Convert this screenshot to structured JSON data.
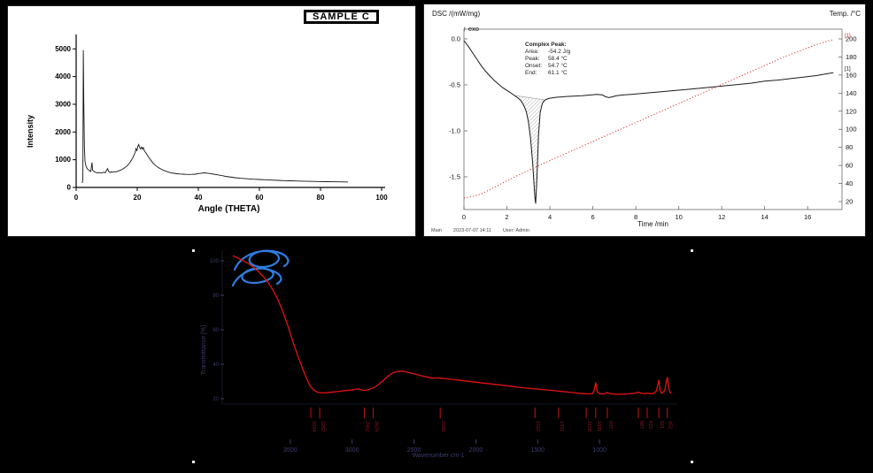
{
  "page": {
    "background": "#000000"
  },
  "xrd": {
    "sample_label": "SAMPLE C",
    "xlabel": "Angle (THETA)",
    "ylabel": "Intensity"
  },
  "dsc": {
    "left_axis_title": "DSC /(mW/mg)",
    "exo_label": "↑ exo",
    "right_axis_title": "Temp. /°C",
    "xlabel": "Time /min",
    "annotation": {
      "title": "Complex Peak:",
      "rows": [
        [
          "Area:",
          "-54.2 J/g"
        ],
        [
          "Peak:",
          "58.4 °C"
        ],
        [
          "Onset:",
          "54.7 °C"
        ],
        [
          "End:",
          "61.1 °C"
        ]
      ]
    },
    "footer": {
      "module": "Main",
      "datetime": "2023-07-07 14:11",
      "user": "User: Admin"
    }
  },
  "ftir": {
    "xlabel": "Wavenumber cm-1",
    "ylabel": "Transmittance [%]"
  },
  "chart_data": [
    {
      "type": "line",
      "name": "XRD pattern",
      "title": "SAMPLE C",
      "xlabel": "Angle (THETA)",
      "ylabel": "Intensity",
      "xlim": [
        0,
        100
      ],
      "ylim": [
        0,
        5200
      ],
      "xticks": [
        0,
        20,
        40,
        60,
        80,
        100
      ],
      "yticks": [
        0,
        1000,
        2000,
        3000,
        4000,
        5000
      ],
      "grid": false,
      "curve_color": "#141414",
      "points": [
        [
          2,
          160
        ],
        [
          2.2,
          300
        ],
        [
          2.35,
          4950
        ],
        [
          2.5,
          3200
        ],
        [
          2.7,
          1500
        ],
        [
          2.9,
          950
        ],
        [
          3.2,
          780
        ],
        [
          3.6,
          680
        ],
        [
          4,
          640
        ],
        [
          4.4,
          600
        ],
        [
          4.8,
          580
        ],
        [
          5,
          760
        ],
        [
          5.2,
          900
        ],
        [
          5.4,
          620
        ],
        [
          6,
          560
        ],
        [
          6.5,
          540
        ],
        [
          7,
          520
        ],
        [
          7.5,
          540
        ],
        [
          8,
          520
        ],
        [
          8.5,
          530
        ],
        [
          9,
          550
        ],
        [
          9.5,
          530
        ],
        [
          10,
          620
        ],
        [
          10.3,
          680
        ],
        [
          10.6,
          580
        ],
        [
          11,
          540
        ],
        [
          11.5,
          560
        ],
        [
          12,
          550
        ],
        [
          12.5,
          570
        ],
        [
          13,
          560
        ],
        [
          13.5,
          580
        ],
        [
          14,
          600
        ],
        [
          14.5,
          620
        ],
        [
          15,
          650
        ],
        [
          15.5,
          680
        ],
        [
          16,
          720
        ],
        [
          16.5,
          760
        ],
        [
          17,
          820
        ],
        [
          17.5,
          880
        ],
        [
          18,
          970
        ],
        [
          18.5,
          1060
        ],
        [
          19,
          1180
        ],
        [
          19.3,
          1260
        ],
        [
          19.6,
          1400
        ],
        [
          19.9,
          1330
        ],
        [
          20.2,
          1480
        ],
        [
          20.5,
          1550
        ],
        [
          20.8,
          1430
        ],
        [
          21.1,
          1390
        ],
        [
          21.4,
          1460
        ],
        [
          21.7,
          1380
        ],
        [
          22,
          1440
        ],
        [
          22.3,
          1330
        ],
        [
          22.6,
          1280
        ],
        [
          23,
          1220
        ],
        [
          23.5,
          1130
        ],
        [
          24,
          1050
        ],
        [
          24.5,
          980
        ],
        [
          25,
          900
        ],
        [
          25.5,
          840
        ],
        [
          26,
          790
        ],
        [
          27,
          710
        ],
        [
          28,
          650
        ],
        [
          29,
          600
        ],
        [
          30,
          560
        ],
        [
          31,
          530
        ],
        [
          32,
          510
        ],
        [
          33,
          495
        ],
        [
          34,
          485
        ],
        [
          35,
          478
        ],
        [
          36,
          472
        ],
        [
          37,
          470
        ],
        [
          38,
          472
        ],
        [
          39,
          480
        ],
        [
          40,
          500
        ],
        [
          41,
          515
        ],
        [
          42,
          525
        ],
        [
          43,
          515
        ],
        [
          44,
          500
        ],
        [
          45,
          480
        ],
        [
          46,
          460
        ],
        [
          47,
          440
        ],
        [
          48,
          420
        ],
        [
          49,
          400
        ],
        [
          50,
          382
        ],
        [
          52,
          352
        ],
        [
          54,
          330
        ],
        [
          56,
          312
        ],
        [
          58,
          298
        ],
        [
          60,
          288
        ],
        [
          62,
          276
        ],
        [
          64,
          266
        ],
        [
          66,
          256
        ],
        [
          68,
          247
        ],
        [
          70,
          240
        ],
        [
          72,
          233
        ],
        [
          74,
          227
        ],
        [
          76,
          221
        ],
        [
          78,
          216
        ],
        [
          80,
          211
        ],
        [
          82,
          207
        ],
        [
          84,
          203
        ],
        [
          86,
          200
        ],
        [
          88,
          197
        ],
        [
          89,
          195
        ]
      ]
    },
    {
      "type": "line",
      "name": "DSC thermogram",
      "xlabel": "Time /min",
      "xmax": 17.6,
      "xticks": [
        0,
        2,
        4,
        6,
        8,
        10,
        12,
        14,
        16
      ],
      "yticks_left": [
        0.0,
        -0.5,
        -1.0,
        -1.5
      ],
      "yticks_right": [
        200,
        180,
        160,
        140,
        120,
        100,
        80,
        60,
        40,
        20
      ],
      "hatch_range": [
        2.35,
        3.72
      ],
      "hatch_baseline": [
        -0.615,
        -0.662
      ],
      "annotation": {
        "area_J_per_g": -54.2,
        "peak_C": 58.4,
        "onset_C": 54.7,
        "end_C": 61.1
      },
      "series": [
        {
          "name": "DSC /(mW/mg)",
          "marker": "[1]",
          "color": "#1a1a1a",
          "points": [
            [
              0,
              -0.02
            ],
            [
              0.2,
              -0.08
            ],
            [
              0.4,
              -0.15
            ],
            [
              0.6,
              -0.22
            ],
            [
              0.8,
              -0.29
            ],
            [
              1.0,
              -0.35
            ],
            [
              1.2,
              -0.4
            ],
            [
              1.4,
              -0.45
            ],
            [
              1.6,
              -0.49
            ],
            [
              1.8,
              -0.53
            ],
            [
              2.0,
              -0.56
            ],
            [
              2.2,
              -0.59
            ],
            [
              2.35,
              -0.615
            ],
            [
              2.5,
              -0.64
            ],
            [
              2.65,
              -0.67
            ],
            [
              2.78,
              -0.72
            ],
            [
              2.9,
              -0.79
            ],
            [
              3.0,
              -0.9
            ],
            [
              3.1,
              -1.08
            ],
            [
              3.2,
              -1.35
            ],
            [
              3.3,
              -1.72
            ],
            [
              3.34,
              -1.79
            ],
            [
              3.4,
              -1.5
            ],
            [
              3.47,
              -1.05
            ],
            [
              3.55,
              -0.8
            ],
            [
              3.65,
              -0.7
            ],
            [
              3.8,
              -0.66
            ],
            [
              4.0,
              -0.645
            ],
            [
              4.3,
              -0.635
            ],
            [
              4.7,
              -0.628
            ],
            [
              5.1,
              -0.622
            ],
            [
              5.5,
              -0.617
            ],
            [
              5.9,
              -0.61
            ],
            [
              6.2,
              -0.604
            ],
            [
              6.45,
              -0.61
            ],
            [
              6.6,
              -0.63
            ],
            [
              6.75,
              -0.638
            ],
            [
              6.9,
              -0.63
            ],
            [
              7.1,
              -0.618
            ],
            [
              7.4,
              -0.61
            ],
            [
              7.8,
              -0.603
            ],
            [
              8.2,
              -0.595
            ],
            [
              8.7,
              -0.585
            ],
            [
              9.2,
              -0.574
            ],
            [
              9.8,
              -0.562
            ],
            [
              10.4,
              -0.549
            ],
            [
              11.0,
              -0.536
            ],
            [
              11.6,
              -0.523
            ],
            [
              12.2,
              -0.509
            ],
            [
              12.8,
              -0.495
            ],
            [
              13.4,
              -0.481
            ],
            [
              14.0,
              -0.46
            ],
            [
              14.6,
              -0.448
            ],
            [
              15.2,
              -0.432
            ],
            [
              15.8,
              -0.416
            ],
            [
              16.4,
              -0.399
            ],
            [
              17.0,
              -0.375
            ],
            [
              17.2,
              -0.368
            ]
          ]
        },
        {
          "name": "Temp. /°C",
          "marker": "[1]",
          "color": "#e03030",
          "points": [
            [
              0,
              24
            ],
            [
              0.4,
              25.5
            ],
            [
              0.8,
              28.5
            ],
            [
              1.2,
              33
            ],
            [
              1.6,
              38
            ],
            [
              2.0,
              43
            ],
            [
              2.5,
              49
            ],
            [
              3.0,
              54.5
            ],
            [
              3.5,
              60
            ],
            [
              4.0,
              65.5
            ],
            [
              5.0,
              76
            ],
            [
              6.0,
              86.5
            ],
            [
              7.0,
              97
            ],
            [
              8.0,
              107.5
            ],
            [
              9.0,
              118
            ],
            [
              10.0,
              128.5
            ],
            [
              11.0,
              139
            ],
            [
              12.0,
              149.5
            ],
            [
              13.0,
              160
            ],
            [
              14.0,
              170.5
            ],
            [
              15.0,
              181
            ],
            [
              16.0,
              190
            ],
            [
              16.5,
              194.5
            ],
            [
              17.0,
              198
            ],
            [
              17.2,
              199
            ]
          ]
        }
      ]
    },
    {
      "type": "line",
      "name": "FTIR spectrum",
      "xlabel": "Wavenumber cm-1",
      "ylabel": "Transmittance [%]",
      "xlim": [
        3964,
        400
      ],
      "x_reversed": true,
      "xticks": [
        3500,
        3000,
        2500,
        2000,
        1500,
        1000
      ],
      "yticks": [
        100,
        80,
        60,
        40,
        20
      ],
      "axis_color": "#3c3c6e",
      "curve_color": "#e51212",
      "peak_label_color": "#8a1620",
      "peaks": [
        3334,
        3262,
        2902,
        2829,
        2288,
        1522,
        1331,
        1108,
        1031,
        937,
        687,
        615,
        521,
        452
      ],
      "points": [
        [
          3964,
          103
        ],
        [
          3920,
          101.5
        ],
        [
          3880,
          100
        ],
        [
          3840,
          98.5
        ],
        [
          3800,
          96.5
        ],
        [
          3760,
          94
        ],
        [
          3720,
          91
        ],
        [
          3680,
          87.5
        ],
        [
          3640,
          83
        ],
        [
          3600,
          77.5
        ],
        [
          3560,
          70.5
        ],
        [
          3520,
          62.5
        ],
        [
          3480,
          53.5
        ],
        [
          3440,
          45
        ],
        [
          3400,
          37.5
        ],
        [
          3370,
          32
        ],
        [
          3340,
          27.5
        ],
        [
          3310,
          25
        ],
        [
          3280,
          23.8
        ],
        [
          3250,
          23.4
        ],
        [
          3220,
          23.4
        ],
        [
          3180,
          23.7
        ],
        [
          3140,
          24
        ],
        [
          3100,
          24.3
        ],
        [
          3060,
          24.7
        ],
        [
          3020,
          25
        ],
        [
          2980,
          25.4
        ],
        [
          2950,
          25.7
        ],
        [
          2920,
          25.1
        ],
        [
          2900,
          24.8
        ],
        [
          2880,
          25
        ],
        [
          2860,
          25.5
        ],
        [
          2830,
          26.2
        ],
        [
          2800,
          27.5
        ],
        [
          2760,
          29.8
        ],
        [
          2720,
          32.5
        ],
        [
          2690,
          34.2
        ],
        [
          2660,
          35.3
        ],
        [
          2630,
          35.9
        ],
        [
          2600,
          36
        ],
        [
          2570,
          35.7
        ],
        [
          2540,
          35.2
        ],
        [
          2500,
          34.4
        ],
        [
          2460,
          33.7
        ],
        [
          2420,
          33
        ],
        [
          2380,
          32.4
        ],
        [
          2349,
          31.9
        ],
        [
          2320,
          32.1
        ],
        [
          2280,
          31.9
        ],
        [
          2240,
          31.6
        ],
        [
          2180,
          31.1
        ],
        [
          2120,
          30.6
        ],
        [
          2060,
          30.1
        ],
        [
          2000,
          29.6
        ],
        [
          1940,
          29.1
        ],
        [
          1880,
          28.6
        ],
        [
          1820,
          28.1
        ],
        [
          1760,
          27.6
        ],
        [
          1700,
          27.1
        ],
        [
          1650,
          26.6
        ],
        [
          1600,
          26.2
        ],
        [
          1550,
          25.9
        ],
        [
          1522,
          25.7
        ],
        [
          1480,
          25.5
        ],
        [
          1440,
          25.2
        ],
        [
          1400,
          24.9
        ],
        [
          1360,
          24.6
        ],
        [
          1331,
          24.4
        ],
        [
          1300,
          24.2
        ],
        [
          1260,
          23.9
        ],
        [
          1220,
          23.6
        ],
        [
          1180,
          23.3
        ],
        [
          1140,
          23
        ],
        [
          1108,
          22.8
        ],
        [
          1080,
          22.8
        ],
        [
          1060,
          23
        ],
        [
          1045,
          24.5
        ],
        [
          1031,
          29.5
        ],
        [
          1018,
          24
        ],
        [
          1000,
          22.9
        ],
        [
          980,
          22.7
        ],
        [
          960,
          22.9
        ],
        [
          937,
          23.6
        ],
        [
          915,
          22.9
        ],
        [
          890,
          22.7
        ],
        [
          860,
          22.6
        ],
        [
          830,
          22.6
        ],
        [
          800,
          22.7
        ],
        [
          770,
          22.8
        ],
        [
          740,
          23
        ],
        [
          710,
          23.3
        ],
        [
          687,
          23.8
        ],
        [
          665,
          23.2
        ],
        [
          640,
          23
        ],
        [
          615,
          23.2
        ],
        [
          590,
          23
        ],
        [
          565,
          23
        ],
        [
          540,
          24.5
        ],
        [
          528,
          28.5
        ],
        [
          521,
          31
        ],
        [
          512,
          25.5
        ],
        [
          500,
          23.3
        ],
        [
          488,
          23.5
        ],
        [
          472,
          25
        ],
        [
          461,
          29.5
        ],
        [
          452,
          32.5
        ],
        [
          443,
          27
        ],
        [
          432,
          23.8
        ],
        [
          420,
          23.3
        ]
      ]
    }
  ]
}
